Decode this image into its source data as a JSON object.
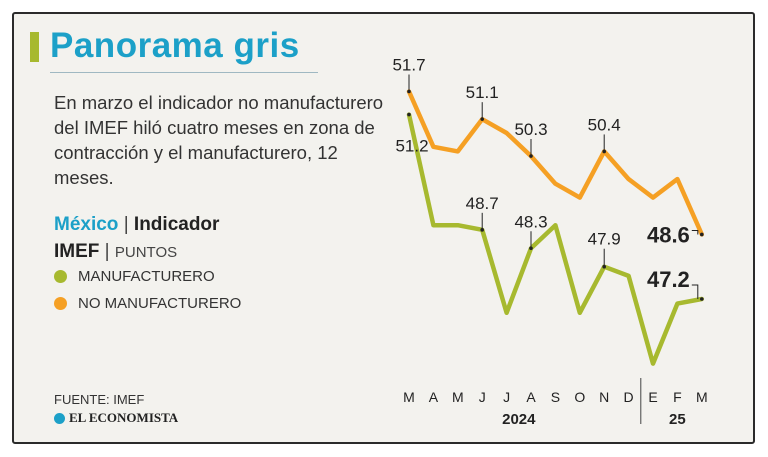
{
  "header": {
    "title": "Panorama gris",
    "description": "En marzo el indicador no manufacturero del IMEF hiló cuatro meses en zona de contracción y el manufacturero, 12 meses."
  },
  "legend": {
    "country": "México",
    "indicator_line1": "Indicador",
    "indicator_line2": "IMEF",
    "units": "PUNTOS",
    "items": [
      {
        "label": "MANUFACTURERO",
        "color": "#a7b92f"
      },
      {
        "label": "NO MANUFACTURERO",
        "color": "#f5a024"
      }
    ]
  },
  "footer": {
    "source": "FUENTE: IMEF",
    "brand": "EL ECONOMISTA"
  },
  "chart_data": {
    "type": "line",
    "categories": [
      "M",
      "A",
      "M",
      "J",
      "J",
      "A",
      "S",
      "O",
      "N",
      "D",
      "E",
      "F",
      "M"
    ],
    "year_groups": [
      {
        "label": "2024",
        "from": 0,
        "to": 9
      },
      {
        "label": "25",
        "from": 10,
        "to": 12
      }
    ],
    "ylim": [
      45.4,
      52.6
    ],
    "series": [
      {
        "name": "MANUFACTURERO",
        "color": "#a7b92f",
        "values": [
          51.2,
          48.8,
          48.8,
          48.7,
          46.9,
          48.3,
          48.8,
          46.9,
          47.9,
          47.7,
          45.8,
          47.1,
          47.2
        ],
        "labels": [
          {
            "index": 0,
            "text": "51.2"
          },
          {
            "index": 3,
            "text": "48.7"
          },
          {
            "index": 5,
            "text": "48.3"
          },
          {
            "index": 8,
            "text": "47.9"
          },
          {
            "index": 12,
            "text": "47.2"
          }
        ]
      },
      {
        "name": "NO MANUFACTURERO",
        "color": "#f5a024",
        "values": [
          51.7,
          50.5,
          50.4,
          51.1,
          50.8,
          50.3,
          49.7,
          49.4,
          50.4,
          49.8,
          49.4,
          49.8,
          48.6
        ],
        "labels": [
          {
            "index": 0,
            "text": "51.7"
          },
          {
            "index": 3,
            "text": "51.1"
          },
          {
            "index": 5,
            "text": "50.3"
          },
          {
            "index": 8,
            "text": "50.4"
          },
          {
            "index": 12,
            "text": "48.6"
          }
        ]
      }
    ]
  }
}
